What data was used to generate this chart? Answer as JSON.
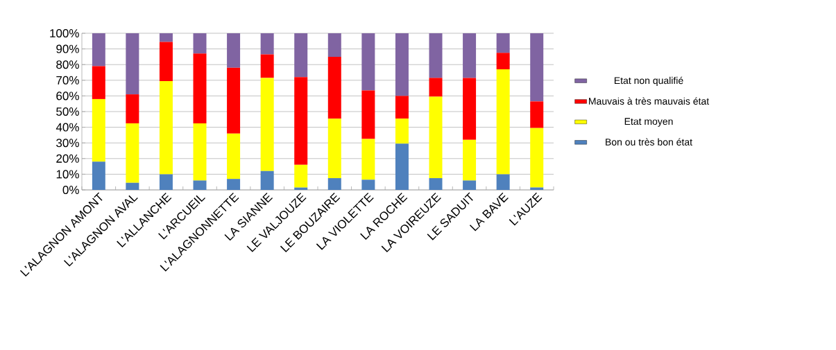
{
  "chart_data": {
    "type": "bar",
    "stacked": true,
    "categories": [
      "L'ALAGNON AMONT",
      "L'ALAGNON AVAL",
      "L'ALLANCHE",
      "L'ARCUEIL",
      "L'ALAGNONNETTE",
      "LA SIANNE",
      "LE VALJOUZE",
      "LE BOUZAIRE",
      "LA VIOLETTE",
      "LA ROCHE",
      "LA VOIREUZE",
      "LE SADUIT",
      "LA BAVE",
      "L'AUZE"
    ],
    "series": [
      {
        "name": "Bon ou très bon état",
        "color": "#4f81bd",
        "values": [
          18,
          4.5,
          10,
          6,
          7,
          12,
          1.5,
          7.5,
          6.5,
          29.5,
          7.5,
          6,
          10,
          1.5
        ]
      },
      {
        "name": "Etat moyen",
        "color": "#ffff00",
        "values": [
          40,
          38,
          59.5,
          36.5,
          29,
          59.5,
          14.5,
          38,
          26,
          16,
          52,
          26,
          67,
          38
        ]
      },
      {
        "name": "Mauvais à très mauvais état",
        "color": "#ff0000",
        "values": [
          21,
          18.5,
          25,
          44.5,
          42,
          15,
          56,
          39.5,
          31,
          14.5,
          12,
          39.5,
          10.5,
          17
        ]
      },
      {
        "name": "Etat non qualifié",
        "color": "#8064a2",
        "values": [
          21,
          39,
          5.5,
          13,
          22,
          13.5,
          28,
          15,
          36.5,
          40,
          28.5,
          28.5,
          12.5,
          43.5
        ]
      }
    ],
    "ylim": [
      0,
      100
    ],
    "yticks": [
      {
        "value": 0,
        "label": "0%"
      },
      {
        "value": 10,
        "label": "10%"
      },
      {
        "value": 20,
        "label": "20%"
      },
      {
        "value": 30,
        "label": "30%"
      },
      {
        "value": 40,
        "label": "40%"
      },
      {
        "value": 50,
        "label": "50%"
      },
      {
        "value": 60,
        "label": "60%"
      },
      {
        "value": 70,
        "label": "70%"
      },
      {
        "value": 80,
        "label": "80%"
      },
      {
        "value": 90,
        "label": "90%"
      },
      {
        "value": 100,
        "label": "100%"
      }
    ],
    "grid": "y",
    "legend": "right"
  }
}
